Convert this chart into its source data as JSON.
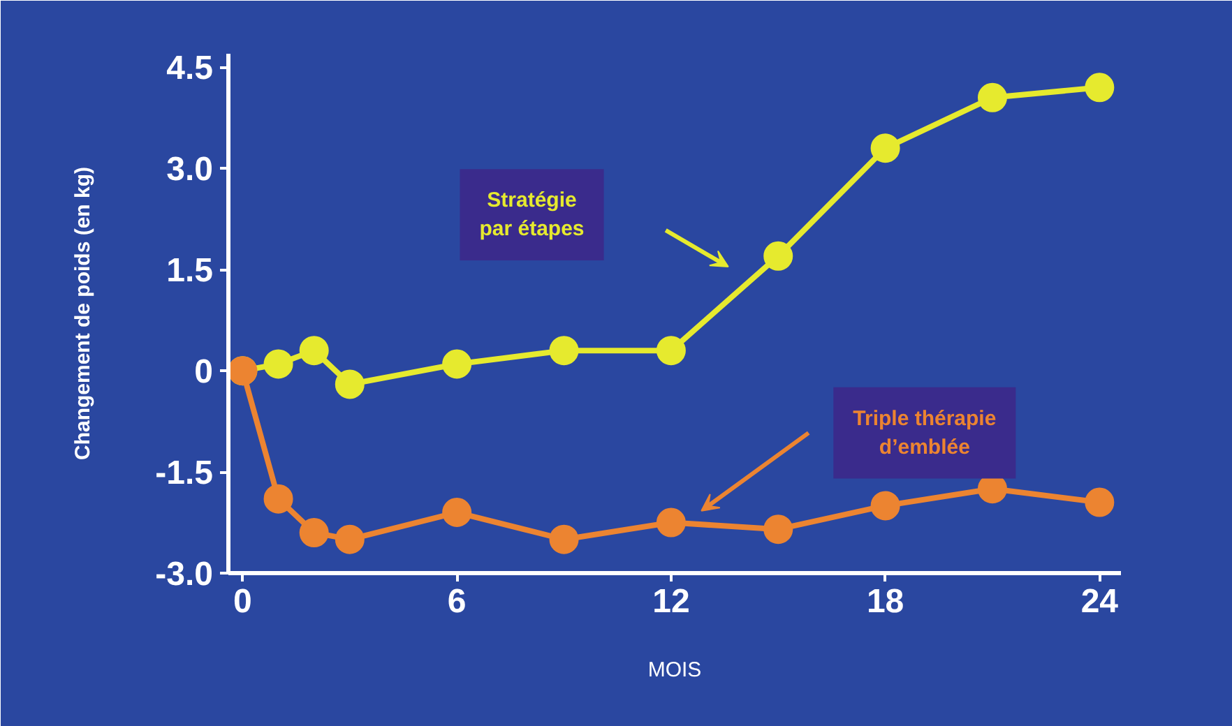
{
  "chart_data": {
    "type": "line",
    "ylabel": "Changement de poids (en kg)",
    "xlabel": "MOIS",
    "x": [
      0,
      1,
      2,
      3,
      6,
      9,
      12,
      15,
      18,
      21,
      24
    ],
    "series": [
      {
        "name": "Stratégie par étapes",
        "color": "#e6ea2e",
        "values": [
          0.0,
          0.1,
          0.3,
          -0.2,
          0.1,
          0.3,
          0.3,
          1.7,
          3.3,
          4.05,
          4.2
        ]
      },
      {
        "name": "Triple thérapie d’emblée",
        "color": "#ec8431",
        "values": [
          0.0,
          -1.9,
          -2.4,
          -2.5,
          -2.1,
          -2.5,
          -2.25,
          -2.35,
          -2.0,
          -1.75,
          -1.95
        ]
      }
    ],
    "xlim": [
      -0.4,
      24.6
    ],
    "ylim": [
      -3.0,
      4.7
    ],
    "xticks": [
      0,
      6,
      12,
      18,
      24
    ],
    "yticks": [
      {
        "value": -3.0,
        "label": "-3.0"
      },
      {
        "value": -1.5,
        "label": "-1.5"
      },
      0,
      {
        "value": 1.5,
        "label": "1.5"
      },
      {
        "value": 3.0,
        "label": "3.0"
      },
      {
        "value": 4.5,
        "label": "4.5"
      }
    ],
    "grid": false,
    "legend": false,
    "marker": "circle",
    "line_style": "solid"
  }
}
